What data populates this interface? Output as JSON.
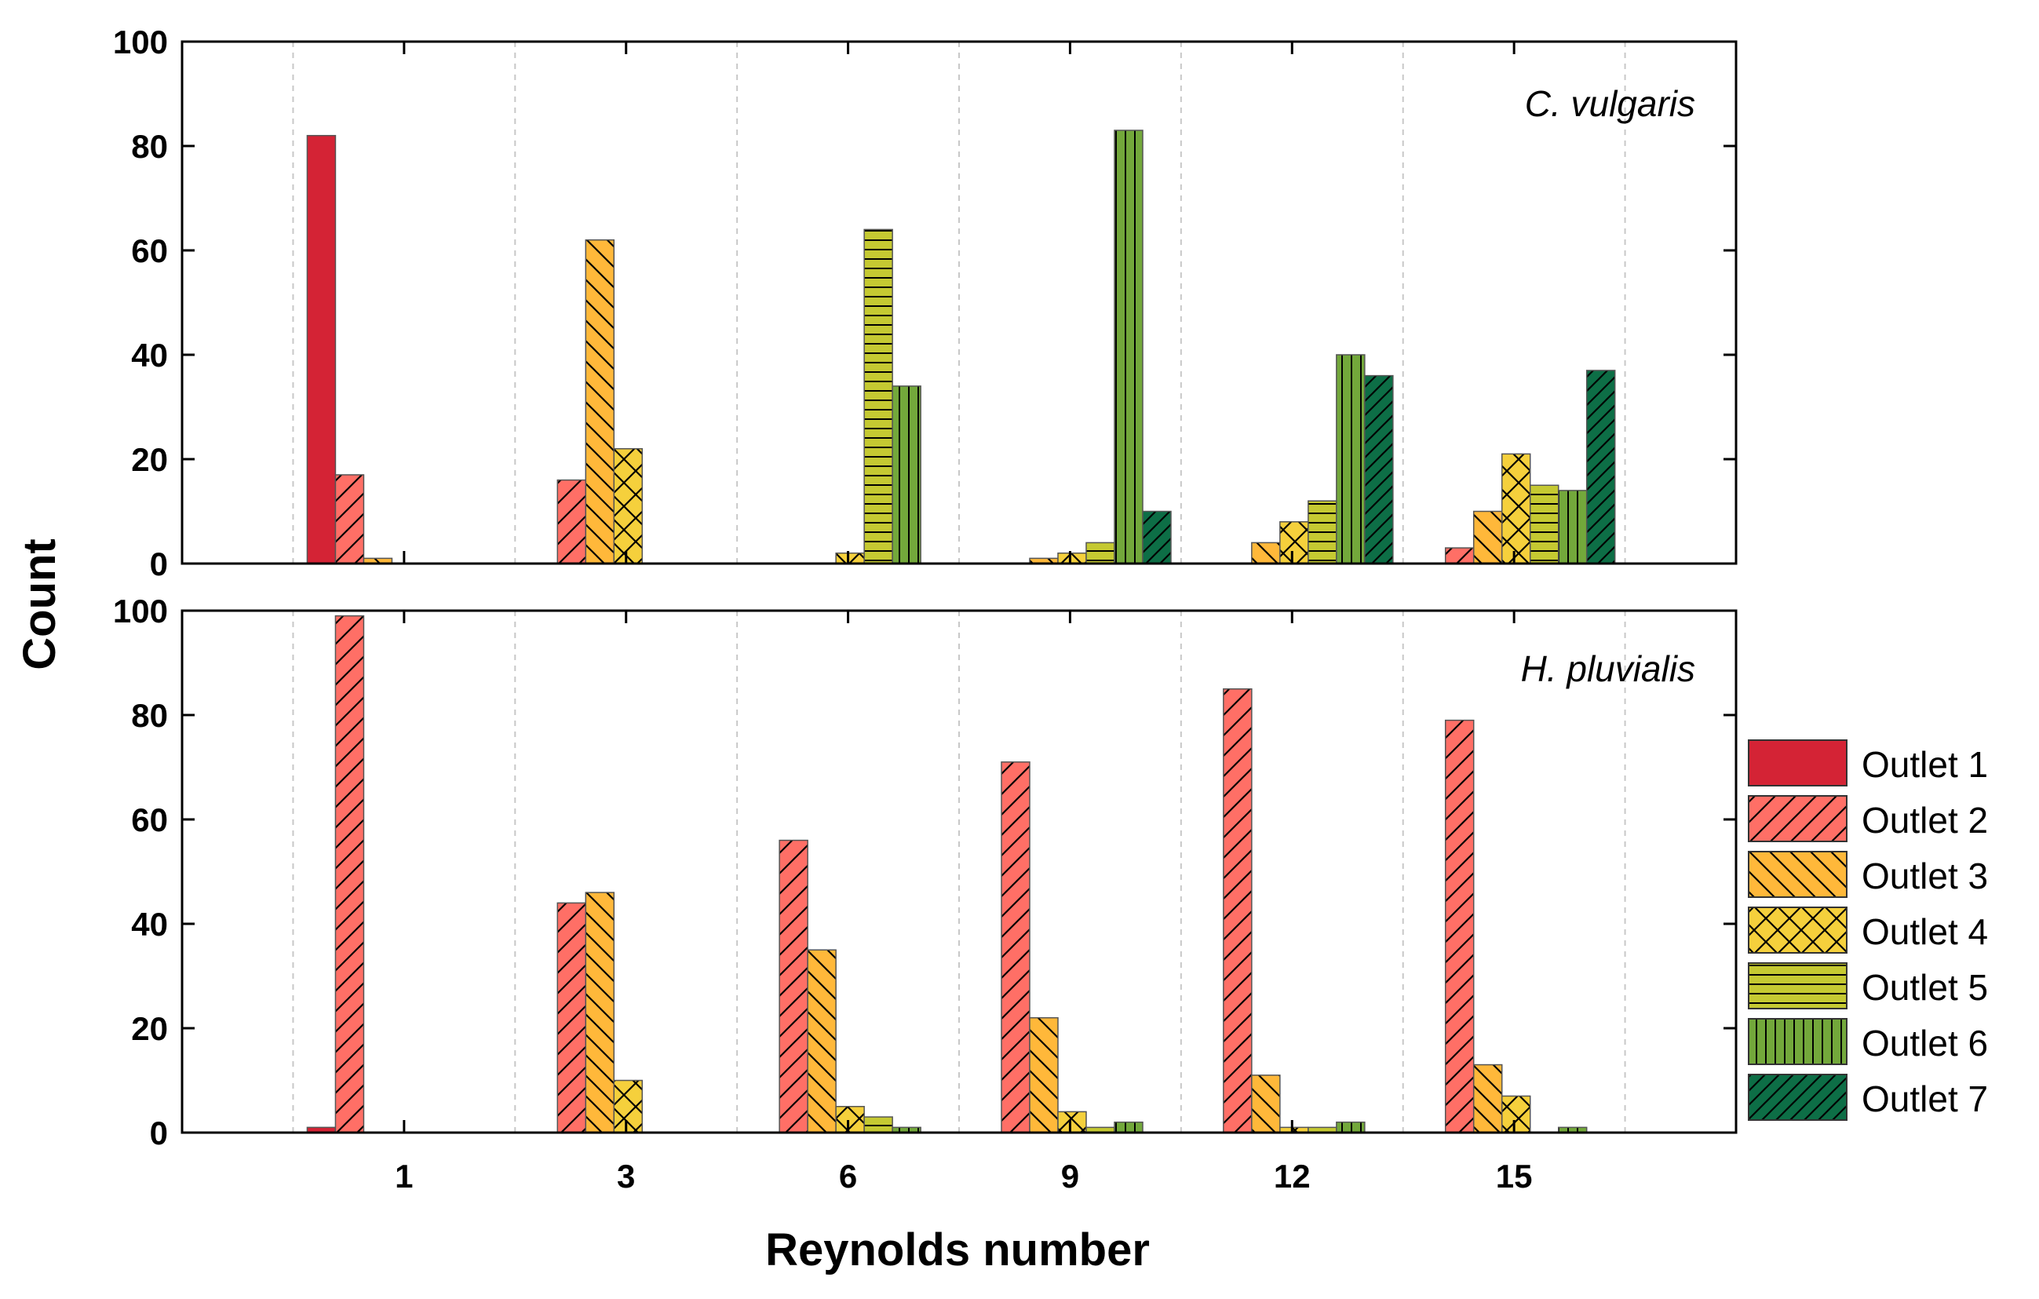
{
  "chart_data": {
    "type": "bar",
    "xlabel": "Reynolds number",
    "ylabel": "Count",
    "categories": [
      "1",
      "3",
      "6",
      "9",
      "12",
      "15"
    ],
    "ylim": [
      0,
      100
    ],
    "yticks": [
      "0",
      "20",
      "40",
      "60",
      "80",
      "100"
    ],
    "grid": "vertical dashed separators",
    "legend_position": "right",
    "series_names": [
      "Outlet 1",
      "Outlet 2",
      "Outlet 3",
      "Outlet 4",
      "Outlet 5",
      "Outlet 6",
      "Outlet 7"
    ],
    "series_colors": [
      "#d42335",
      "#ff6f66",
      "#ffb83a",
      "#f5d03c",
      "#c5c932",
      "#73a83b",
      "#0d6e46"
    ],
    "panels": [
      {
        "label": "C. vulgaris",
        "series": [
          {
            "name": "Outlet 1",
            "values": [
              82,
              0,
              0,
              0,
              0,
              0
            ]
          },
          {
            "name": "Outlet 2",
            "values": [
              17,
              16,
              0,
              0,
              0,
              3
            ]
          },
          {
            "name": "Outlet 3",
            "values": [
              1,
              62,
              0,
              1,
              4,
              10
            ]
          },
          {
            "name": "Outlet 4",
            "values": [
              0,
              22,
              2,
              2,
              8,
              21
            ]
          },
          {
            "name": "Outlet 5",
            "values": [
              0,
              0,
              64,
              4,
              12,
              15
            ]
          },
          {
            "name": "Outlet 6",
            "values": [
              0,
              0,
              34,
              83,
              40,
              14
            ]
          },
          {
            "name": "Outlet 7",
            "values": [
              0,
              0,
              0,
              10,
              36,
              37
            ]
          }
        ]
      },
      {
        "label": "H. pluvialis",
        "series": [
          {
            "name": "Outlet 1",
            "values": [
              1,
              0,
              0,
              0,
              0,
              0
            ]
          },
          {
            "name": "Outlet 2",
            "values": [
              99,
              44,
              56,
              71,
              85,
              79
            ]
          },
          {
            "name": "Outlet 3",
            "values": [
              0,
              46,
              35,
              22,
              11,
              13
            ]
          },
          {
            "name": "Outlet 4",
            "values": [
              0,
              10,
              5,
              4,
              1,
              7
            ]
          },
          {
            "name": "Outlet 5",
            "values": [
              0,
              0,
              3,
              1,
              1,
              0
            ]
          },
          {
            "name": "Outlet 6",
            "values": [
              0,
              0,
              1,
              2,
              2,
              1
            ]
          },
          {
            "name": "Outlet 7",
            "values": [
              0,
              0,
              0,
              0,
              0,
              0
            ]
          }
        ]
      }
    ]
  }
}
